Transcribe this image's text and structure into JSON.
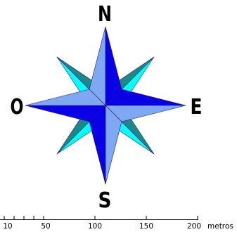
{
  "compass": {
    "north": "N",
    "south": "S",
    "east": "E",
    "west": "O",
    "colors": {
      "main_dark": "#0A00E6",
      "main_light": "#7FA8F2",
      "inter_light": "#00FFFF",
      "inter_dark": "#198A8A",
      "outline": "#222266"
    }
  },
  "scale_bar": {
    "tick_labels": [
      "10",
      "50",
      "100",
      "150",
      "200"
    ],
    "unit": "metros"
  }
}
